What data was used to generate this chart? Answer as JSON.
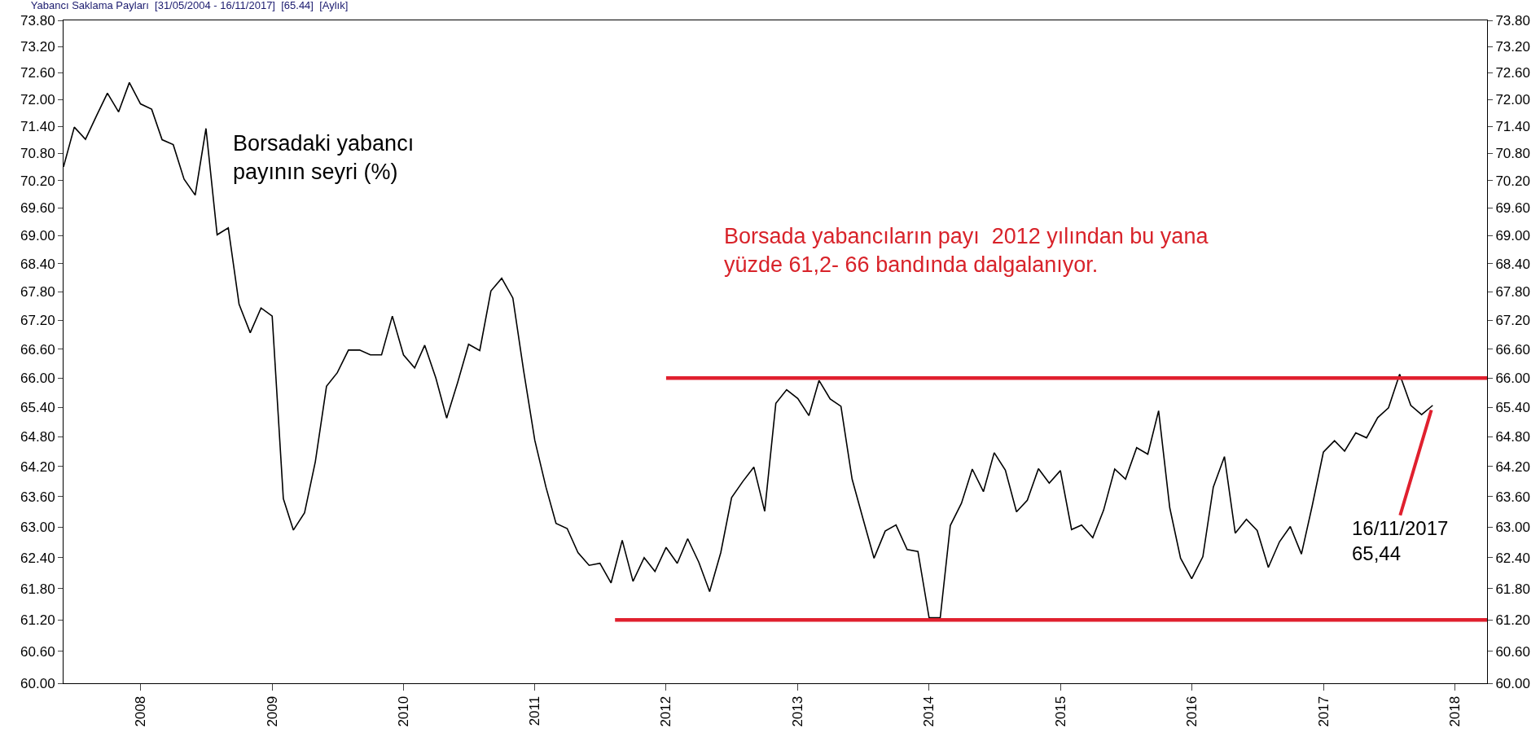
{
  "chart_data": {
    "type": "line",
    "title": "Yabancı Saklama Payları  [31/05/2004 - 16/11/2017]  [65.44]  [Aylık]",
    "x": [
      "2007-06",
      "2007-07",
      "2007-08",
      "2007-09",
      "2007-10",
      "2007-11",
      "2007-12",
      "2008-01",
      "2008-02",
      "2008-03",
      "2008-04",
      "2008-05",
      "2008-06",
      "2008-07",
      "2008-08",
      "2008-09",
      "2008-10",
      "2008-11",
      "2008-12",
      "2009-01",
      "2009-02",
      "2009-03",
      "2009-04",
      "2009-05",
      "2009-06",
      "2009-07",
      "2009-08",
      "2009-09",
      "2009-10",
      "2009-11",
      "2009-12",
      "2010-01",
      "2010-02",
      "2010-03",
      "2010-04",
      "2010-05",
      "2010-06",
      "2010-07",
      "2010-08",
      "2010-09",
      "2010-10",
      "2010-11",
      "2010-12",
      "2011-01",
      "2011-02",
      "2011-03",
      "2011-04",
      "2011-05",
      "2011-06",
      "2011-07",
      "2011-08",
      "2011-09",
      "2011-10",
      "2011-11",
      "2011-12",
      "2012-01",
      "2012-02",
      "2012-03",
      "2012-04",
      "2012-05",
      "2012-06",
      "2012-07",
      "2012-08",
      "2012-09",
      "2012-10",
      "2012-11",
      "2012-12",
      "2013-01",
      "2013-02",
      "2013-03",
      "2013-04",
      "2013-05",
      "2013-06",
      "2013-07",
      "2013-08",
      "2013-09",
      "2013-10",
      "2013-11",
      "2013-12",
      "2014-01",
      "2014-02",
      "2014-03",
      "2014-04",
      "2014-05",
      "2014-06",
      "2014-07",
      "2014-08",
      "2014-09",
      "2014-10",
      "2014-11",
      "2014-12",
      "2015-01",
      "2015-02",
      "2015-03",
      "2015-04",
      "2015-05",
      "2015-06",
      "2015-07",
      "2015-08",
      "2015-09",
      "2015-10",
      "2015-11",
      "2015-12",
      "2016-01",
      "2016-02",
      "2016-03",
      "2016-04",
      "2016-05",
      "2016-06",
      "2016-07",
      "2016-08",
      "2016-09",
      "2016-10",
      "2016-11",
      "2016-12",
      "2017-01",
      "2017-02",
      "2017-03",
      "2017-04",
      "2017-05",
      "2017-06",
      "2017-07",
      "2017-08",
      "2017-09",
      "2017-10",
      "2017-11"
    ],
    "series": [
      {
        "color": "#000000",
        "values": [
          70.5,
          71.38,
          71.11,
          71.64,
          72.14,
          71.72,
          72.38,
          71.9,
          71.78,
          71.1,
          70.99,
          70.23,
          69.88,
          71.35,
          69.02,
          69.17,
          67.54,
          66.94,
          67.46,
          67.29,
          63.56,
          62.94,
          63.28,
          64.3,
          65.83,
          66.11,
          66.58,
          66.58,
          66.48,
          66.48,
          67.29,
          66.48,
          66.21,
          66.68,
          66.0,
          65.18,
          65.92,
          66.7,
          66.57,
          67.82,
          68.09,
          67.67,
          66.15,
          64.73,
          63.79,
          63.07,
          62.97,
          62.5,
          62.25,
          62.29,
          61.91,
          62.74,
          61.94,
          62.4,
          62.13,
          62.6,
          62.29,
          62.77,
          62.31,
          61.74,
          62.5,
          63.58,
          63.9,
          64.19,
          63.31,
          65.48,
          65.76,
          65.58,
          65.23,
          65.95,
          65.57,
          65.42,
          63.95,
          63.17,
          62.39,
          62.92,
          63.04,
          62.56,
          62.52,
          61.24,
          61.24,
          63.03,
          63.47,
          64.15,
          63.7,
          64.48,
          64.13,
          63.3,
          63.53,
          64.16,
          63.87,
          64.12,
          62.95,
          63.04,
          62.79,
          63.33,
          64.15,
          63.95,
          64.58,
          64.45,
          65.33,
          63.38,
          62.39,
          61.99,
          62.42,
          63.79,
          64.4,
          62.88,
          63.15,
          62.93,
          62.21,
          62.71,
          63.01,
          62.47,
          63.42,
          64.49,
          64.72,
          64.51,
          64.88,
          64.78,
          65.19,
          65.39,
          66.08,
          65.44,
          65.25,
          65.44
        ]
      },
      {
        "type": "line",
        "color": "#e0202e",
        "x": [
          "2012-01-01",
          "2018-04-01"
        ],
        "values": [
          66.0,
          66.0
        ]
      },
      {
        "type": "line",
        "color": "#e0202e",
        "x": [
          "2011-08-12",
          "2018-04-01"
        ],
        "values": [
          61.2,
          61.2
        ]
      }
    ],
    "log": "y",
    "xlim": [
      "2007-06-01",
      "2018-04-01"
    ],
    "xticks": [
      "2008",
      "2009",
      "2010",
      "2011",
      "2012",
      "2013",
      "2014",
      "2015",
      "2016",
      "2017",
      "2018"
    ],
    "ylim": [
      60.0,
      73.8
    ],
    "yticks": [
      {
        "value": 60.0,
        "label": "60.00"
      },
      {
        "value": 60.6,
        "label": "60.60"
      },
      {
        "value": 61.2,
        "label": "61.20"
      },
      {
        "value": 61.8,
        "label": "61.80"
      },
      {
        "value": 62.4,
        "label": "62.40"
      },
      {
        "value": 63.0,
        "label": "63.00"
      },
      {
        "value": 63.6,
        "label": "63.60"
      },
      {
        "value": 64.2,
        "label": "64.20"
      },
      {
        "value": 64.8,
        "label": "64.80"
      },
      {
        "value": 65.4,
        "label": "65.40"
      },
      {
        "value": 66.0,
        "label": "66.00"
      },
      {
        "value": 66.6,
        "label": "66.60"
      },
      {
        "value": 67.2,
        "label": "67.20"
      },
      {
        "value": 67.8,
        "label": "67.80"
      },
      {
        "value": 68.4,
        "label": "68.40"
      },
      {
        "value": 69.0,
        "label": "69.00"
      },
      {
        "value": 69.6,
        "label": "69.60"
      },
      {
        "value": 70.2,
        "label": "70.20"
      },
      {
        "value": 70.8,
        "label": "70.80"
      },
      {
        "value": 71.4,
        "label": "71.40"
      },
      {
        "value": 72.0,
        "label": "72.00"
      },
      {
        "value": 72.6,
        "label": "72.60"
      },
      {
        "value": 73.2,
        "label": "73.20"
      },
      {
        "value": 73.8,
        "label": "73.80"
      }
    ],
    "annotations": [
      "Borsadaki yabancı\npayının seyri (%)",
      "Borsada yabancıların payı  2012 yılından bu yana\nyüzde 61,2- 66 bandında dalgalanıyor.",
      {
        "text": "16/11/2017\n65,44",
        "x": "2017-11",
        "y": 65.44
      }
    ],
    "marker": "none",
    "line_style": "solid"
  }
}
